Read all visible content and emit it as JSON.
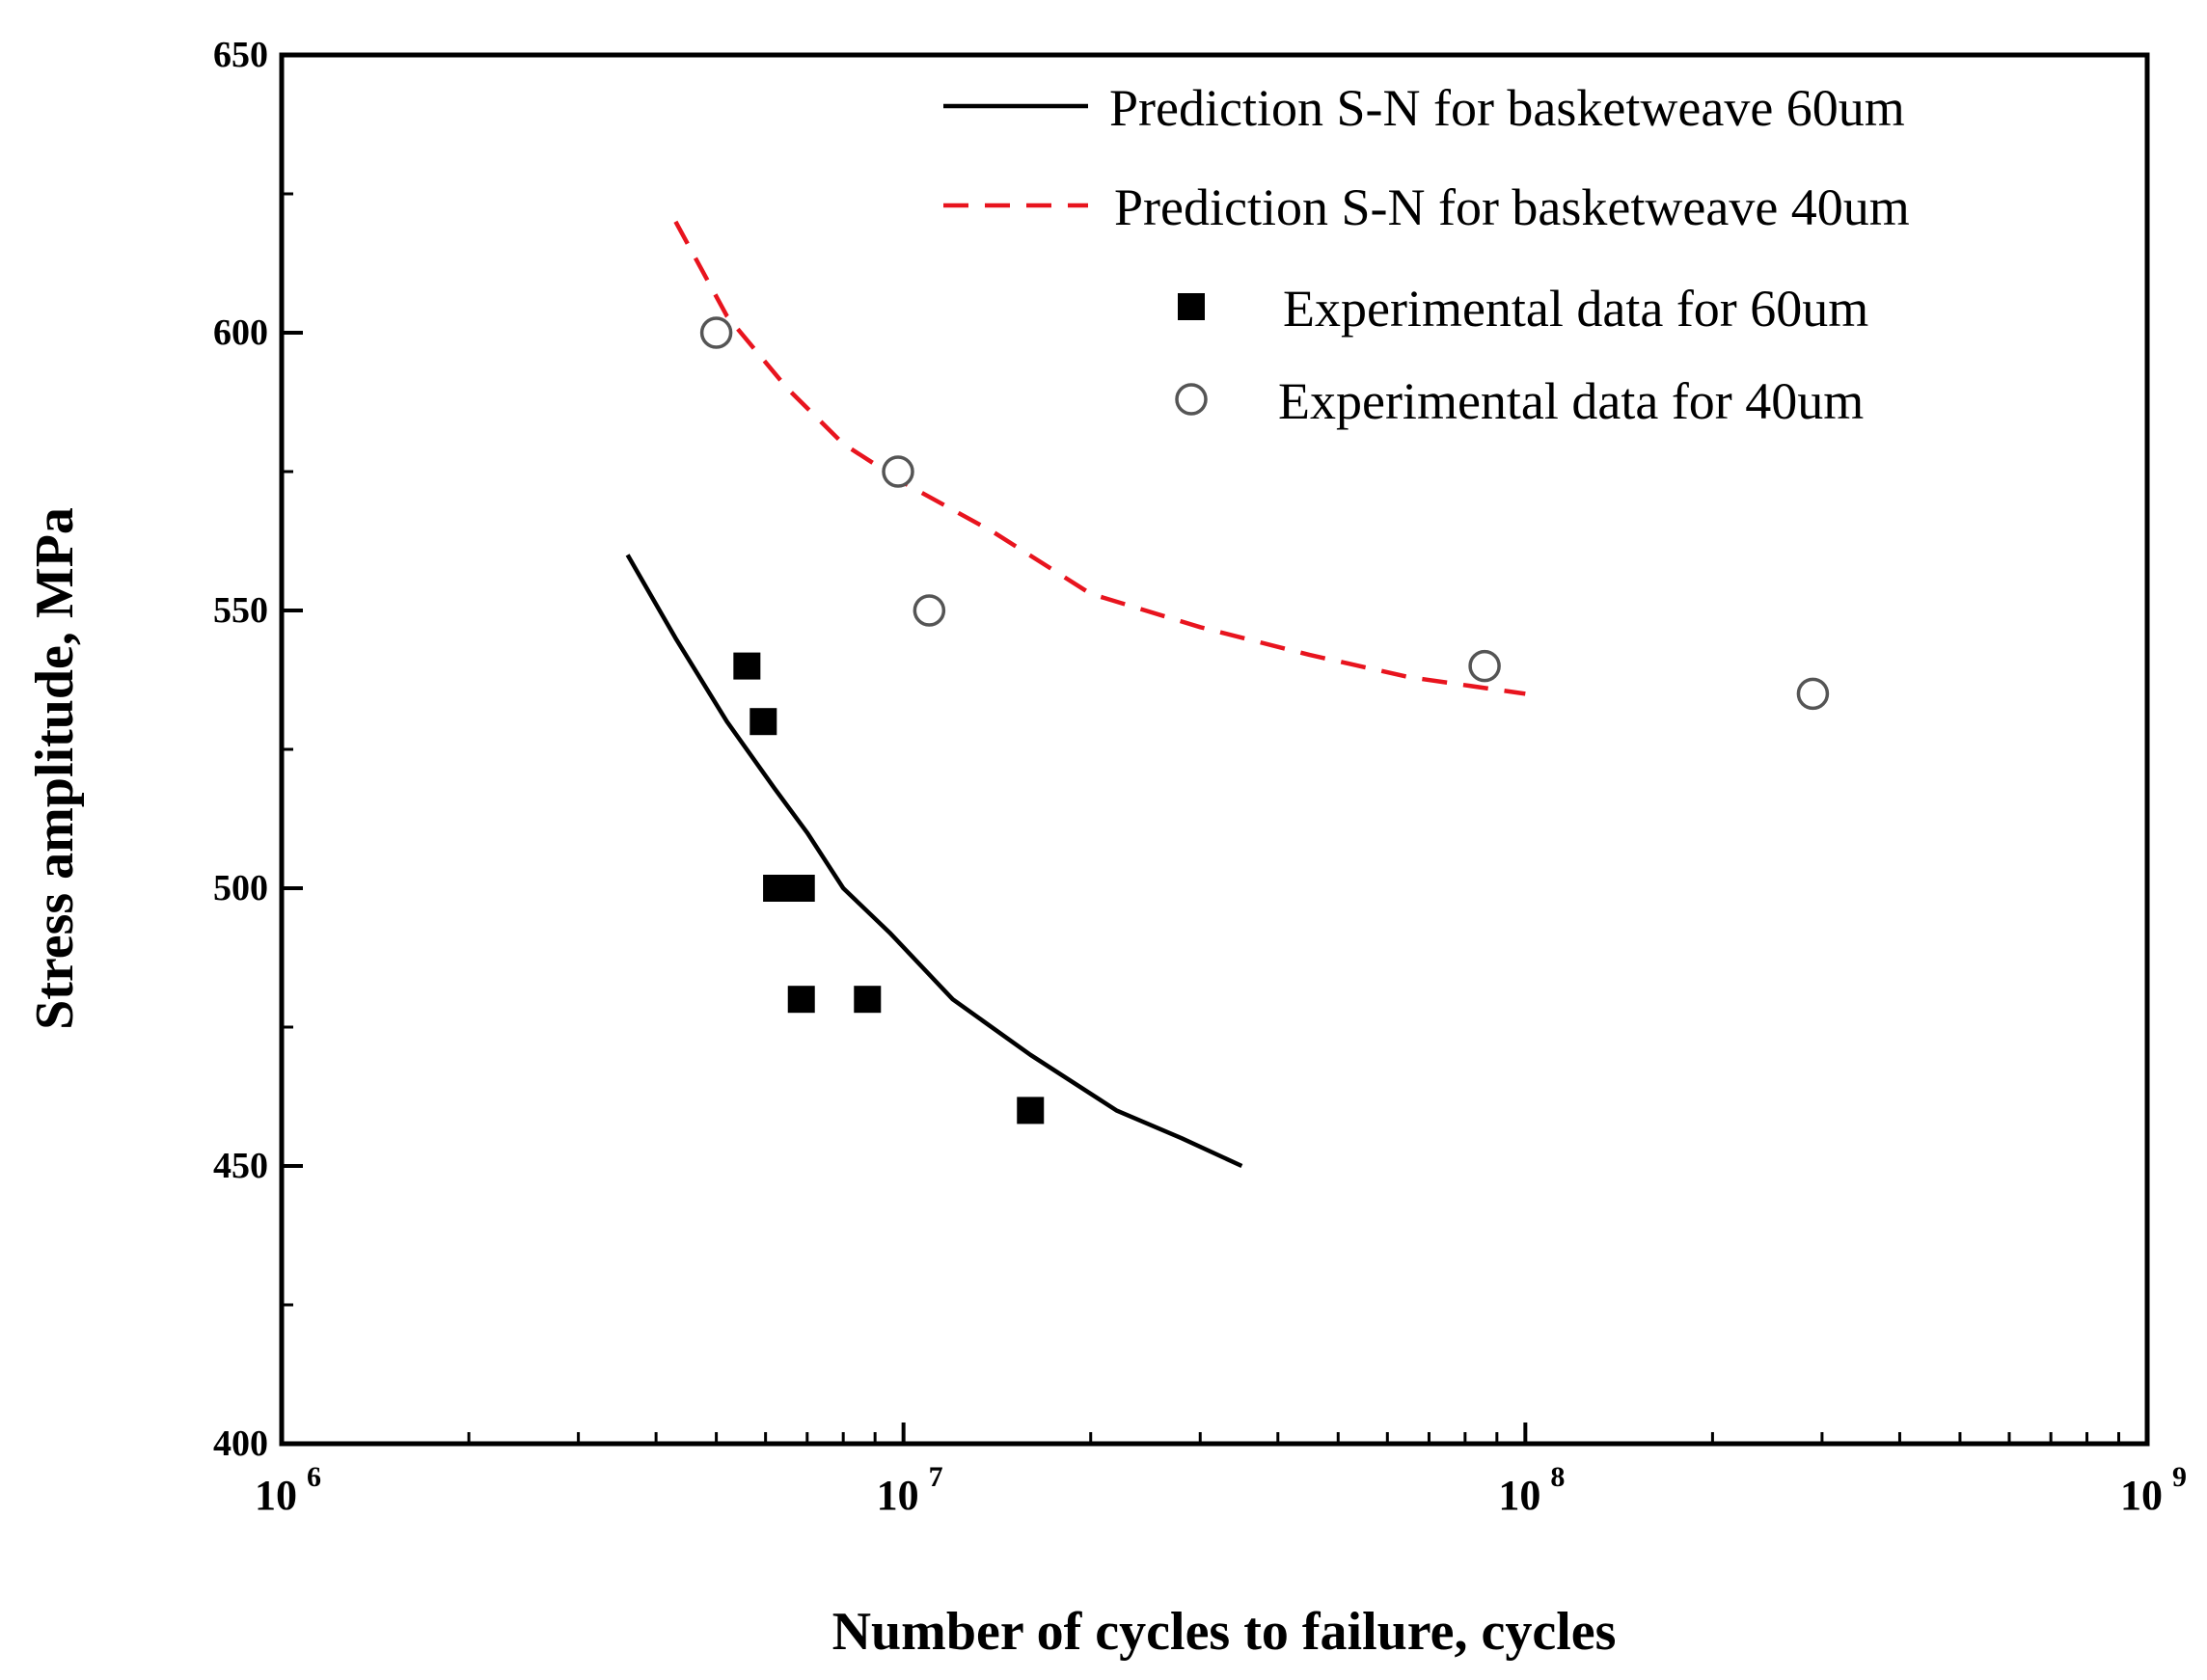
{
  "chart_data": {
    "type": "scatter",
    "xscale": "log",
    "xlim": [
      1000000,
      1000000000
    ],
    "ylim": [
      400,
      650
    ],
    "xlabel": "Number of cycles to failure, cycles",
    "ylabel": "Stress amplitude, MPa",
    "xticks": [
      {
        "value": 1000000,
        "base": "10",
        "exp": "6"
      },
      {
        "value": 10000000,
        "base": "10",
        "exp": "7"
      },
      {
        "value": 100000000,
        "base": "10",
        "exp": "8"
      },
      {
        "value": 1000000000,
        "base": "10",
        "exp": "9"
      }
    ],
    "yticks": [
      {
        "value": 400,
        "label": "400"
      },
      {
        "value": 450,
        "label": "450"
      },
      {
        "value": 500,
        "label": "500"
      },
      {
        "value": 550,
        "label": "550"
      },
      {
        "value": 600,
        "label": "600"
      },
      {
        "value": 650,
        "label": "650"
      }
    ],
    "series": [
      {
        "name": "Prediction S-N for basketweave 60um",
        "kind": "line",
        "style": "solid",
        "color": "#000000",
        "points": [
          [
            3600000,
            560
          ],
          [
            4300000,
            545
          ],
          [
            5200000,
            530
          ],
          [
            6200000,
            518
          ],
          [
            7000000,
            510
          ],
          [
            8000000,
            500
          ],
          [
            9500000,
            492
          ],
          [
            12000000,
            480
          ],
          [
            16000000,
            470
          ],
          [
            22000000,
            460
          ],
          [
            28000000,
            455
          ],
          [
            35000000,
            450
          ]
        ]
      },
      {
        "name": "Prediction S-N for basketweave 40um",
        "kind": "line",
        "style": "dashed",
        "color": "#e8141e",
        "points": [
          [
            4300000,
            620
          ],
          [
            5200000,
            603
          ],
          [
            6500000,
            590
          ],
          [
            8000000,
            580
          ],
          [
            10000000,
            573
          ],
          [
            14000000,
            564
          ],
          [
            20000000,
            553
          ],
          [
            30000000,
            547
          ],
          [
            45000000,
            542
          ],
          [
            65000000,
            538
          ],
          [
            100000000,
            535
          ]
        ]
      },
      {
        "name": "Experimental data for 60um",
        "kind": "scatter",
        "marker": "filled-square",
        "color": "#000000",
        "points": [
          [
            5600000,
            540
          ],
          [
            5950000,
            530
          ],
          [
            6250000,
            500
          ],
          [
            6850000,
            500
          ],
          [
            6850000,
            480
          ],
          [
            8750000,
            480
          ],
          [
            16000000,
            460
          ]
        ]
      },
      {
        "name": "Experimental data for 40um",
        "kind": "scatter",
        "marker": "open-circle",
        "color": "#555555",
        "points": [
          [
            5000000,
            600
          ],
          [
            9800000,
            575
          ],
          [
            11000000,
            550
          ],
          [
            86000000,
            540
          ],
          [
            290000000,
            535
          ]
        ]
      }
    ],
    "legend": {
      "position": "top-right",
      "entries": [
        "Prediction S-N for basketweave 60um",
        "Prediction S-N for basketweave 40um",
        "Experimental data for 60um",
        "Experimental data for 40um"
      ]
    }
  }
}
